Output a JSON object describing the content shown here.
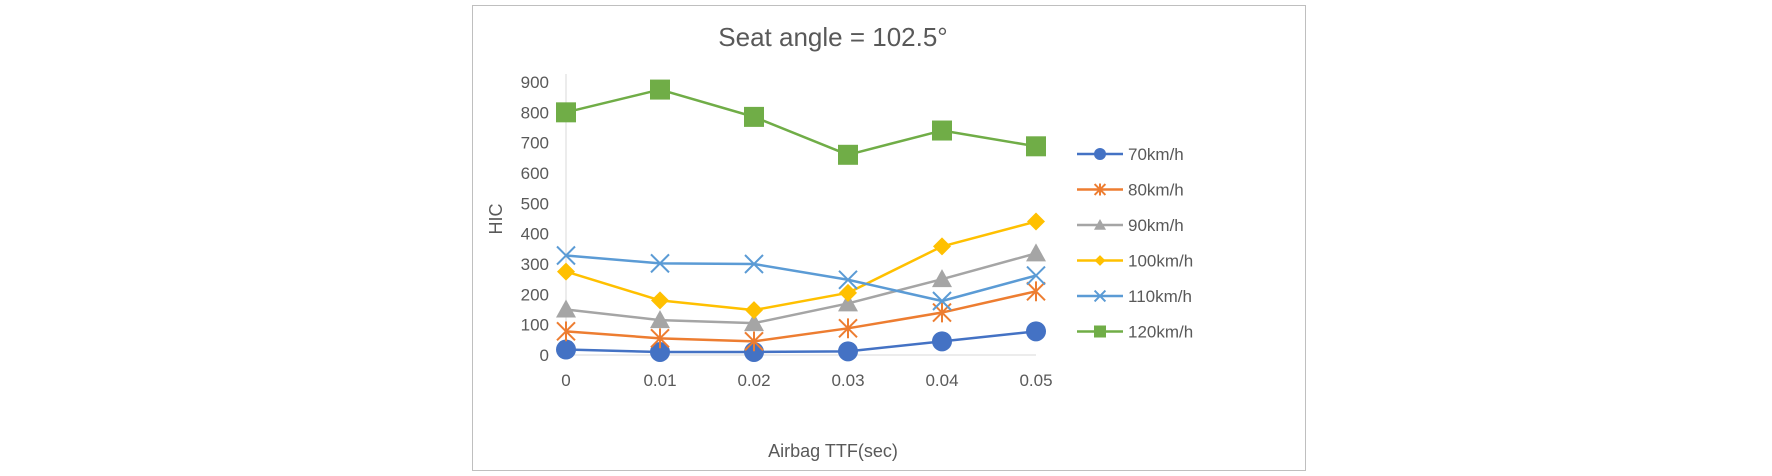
{
  "chart_data": {
    "type": "line",
    "title": "Seat angle = 102.5°",
    "xlabel": "Airbag TTF(sec)",
    "ylabel": "HIC",
    "categories": [
      "0",
      "0.01",
      "0.02",
      "0.03",
      "0.04",
      "0.05"
    ],
    "ylim": [
      0,
      900
    ],
    "yticks": [
      0,
      100,
      200,
      300,
      400,
      500,
      600,
      700,
      800,
      900
    ],
    "grid": false,
    "legend_position": "right",
    "series": [
      {
        "name": "70km/h",
        "color": "#4472C4",
        "marker": "circle",
        "values": [
          18,
          10,
          10,
          12,
          45,
          78
        ]
      },
      {
        "name": "80km/h",
        "color": "#ED7D31",
        "marker": "star",
        "values": [
          78,
          55,
          45,
          88,
          140,
          210
        ]
      },
      {
        "name": "90km/h",
        "color": "#A5A5A5",
        "marker": "triangle",
        "values": [
          150,
          115,
          105,
          170,
          250,
          335
        ]
      },
      {
        "name": "100km/h",
        "color": "#FFC000",
        "marker": "diamond",
        "values": [
          275,
          180,
          148,
          205,
          358,
          440
        ]
      },
      {
        "name": "110km/h",
        "color": "#5B9BD5",
        "marker": "x",
        "values": [
          328,
          302,
          300,
          248,
          178,
          262
        ]
      },
      {
        "name": "120km/h",
        "color": "#70AD47",
        "marker": "square",
        "values": [
          800,
          875,
          785,
          660,
          740,
          688
        ]
      }
    ]
  }
}
